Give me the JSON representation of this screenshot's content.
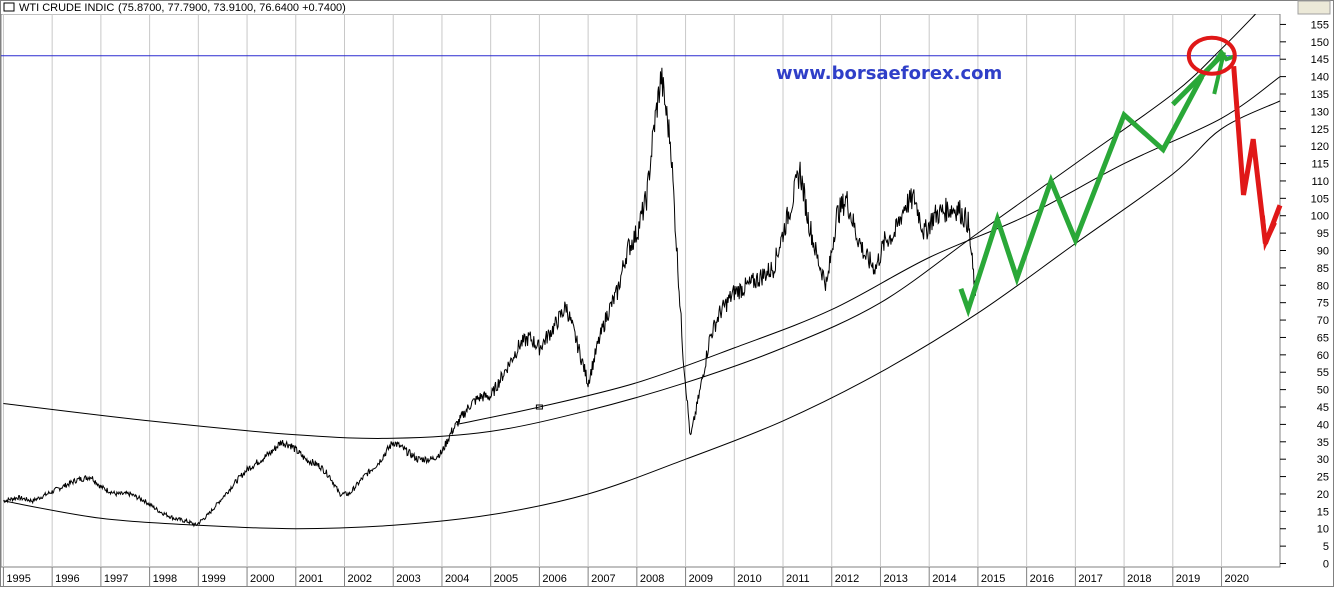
{
  "chart_data": {
    "type": "line",
    "title": "WTI CRUDE INDIC",
    "ohlc_readout": "(75.8700, 77.7900, 73.9100, 76.6400 +0.7400)",
    "watermark": "www.borsaeforex.com",
    "x_tick_labels": [
      "1995",
      "1996",
      "1997",
      "1998",
      "1999",
      "2000",
      "2001",
      "2002",
      "2003",
      "2004",
      "2005",
      "2006",
      "2007",
      "2008",
      "2009",
      "2010",
      "2011",
      "2012",
      "2013",
      "2014",
      "2015",
      "2016",
      "2017",
      "2018",
      "2019",
      "2020"
    ],
    "y_ticks": [
      0,
      5,
      10,
      15,
      20,
      25,
      30,
      35,
      40,
      45,
      50,
      55,
      60,
      65,
      70,
      75,
      80,
      85,
      90,
      95,
      100,
      105,
      110,
      115,
      120,
      125,
      130,
      135,
      140,
      145,
      150,
      155
    ],
    "xlim": [
      1994.95,
      2021.2
    ],
    "ylim": [
      -1,
      158
    ],
    "grid": true,
    "axis_side": "right",
    "colors": {
      "price": "#000000",
      "channel": "#000000",
      "resistance": "#2b2bd0",
      "watermark": "#2f3fc8",
      "forecast_up": "#2aa838",
      "forecast_down": "#e01818",
      "grid": "#c8c8c8",
      "frame_bg": "#ece9d8"
    },
    "series": [
      {
        "values_x": [
          1995.0,
          1995.3,
          1995.6,
          1995.9,
          1996.2,
          1996.5,
          1996.8,
          1997.0,
          1997.3,
          1997.6,
          1997.9,
          1998.2,
          1998.5,
          1998.8,
          1998.95,
          1999.2,
          1999.5,
          1999.8,
          2000.0,
          2000.3,
          2000.5,
          2000.7,
          2000.9,
          2001.2,
          2001.5,
          2001.7,
          2001.9,
          2002.1,
          2002.4,
          2002.7,
          2003.0,
          2003.2,
          2003.5,
          2003.8,
          2004.0,
          2004.2,
          2004.4,
          2004.6,
          2004.8,
          2005.0,
          2005.2,
          2005.4,
          2005.6,
          2005.8,
          2006.0,
          2006.3,
          2006.55,
          2006.8,
          2007.0,
          2007.2,
          2007.4,
          2007.6,
          2007.8,
          2008.0,
          2008.2,
          2008.35,
          2008.5,
          2008.7,
          2008.8,
          2008.95,
          2009.1,
          2009.3,
          2009.5,
          2009.7,
          2010.0,
          2010.3,
          2010.5,
          2010.8,
          2011.0,
          2011.2,
          2011.35,
          2011.5,
          2011.7,
          2011.9,
          2012.1,
          2012.3,
          2012.5,
          2012.7,
          2012.9,
          2013.1,
          2013.3,
          2013.5,
          2013.7,
          2013.9,
          2014.1,
          2014.4,
          2014.6,
          2014.8,
          2014.95
        ],
        "values_y": [
          18,
          19,
          18,
          20,
          22,
          24,
          25,
          22,
          20,
          20,
          18,
          15,
          13,
          12,
          11,
          14,
          19,
          24,
          27,
          30,
          32,
          35,
          34,
          30,
          28,
          25,
          20,
          20,
          25,
          29,
          35,
          33,
          30,
          30,
          32,
          38,
          42,
          46,
          48,
          48,
          53,
          58,
          63,
          65,
          62,
          68,
          74,
          62,
          52,
          63,
          72,
          78,
          90,
          95,
          105,
          125,
          140,
          120,
          95,
          60,
          36,
          50,
          65,
          72,
          78,
          80,
          82,
          85,
          95,
          105,
          113,
          100,
          88,
          80,
          100,
          105,
          95,
          88,
          85,
          93,
          95,
          103,
          105,
          95,
          100,
          102,
          102,
          98,
          77
        ],
        "name": "",
        "color": "#000000"
      }
    ],
    "channels": [
      {
        "name": "outer-upper-arc",
        "x": [
          1995.0,
          1998.0,
          2001.0,
          2003.0,
          2005.0,
          2007.0,
          2009.0,
          2011.0,
          2013.0,
          2015.0,
          2017.0,
          2019.0,
          2020.0,
          2020.7
        ],
        "y": [
          46,
          41,
          37,
          36,
          38,
          44,
          52,
          62,
          75,
          95,
          115,
          135,
          148,
          158
        ]
      },
      {
        "name": "middle-arc",
        "x": [
          2004.3,
          2006.0,
          2008.0,
          2010.0,
          2012.0,
          2014.0,
          2016.0,
          2018.0,
          2020.0,
          2021.2
        ],
        "y": [
          40,
          45,
          52,
          62,
          73,
          88,
          100,
          115,
          128,
          140
        ]
      },
      {
        "name": "lower-arc",
        "x": [
          1995.0,
          1997.0,
          1999.0,
          2001.0,
          2003.0,
          2005.0,
          2007.0,
          2009.0,
          2011.0,
          2013.0,
          2015.0,
          2017.0,
          2019.0,
          2020.0,
          2021.2
        ],
        "y": [
          18,
          13,
          11,
          10,
          11,
          14,
          20,
          30,
          41,
          55,
          72,
          92,
          112,
          125,
          133
        ]
      }
    ],
    "resistance_level": 146,
    "forecast": {
      "green": {
        "x": [
          2014.65,
          2014.8,
          2015.4,
          2015.8,
          2016.5,
          2017.0,
          2018.0,
          2018.8,
          2019.6
        ],
        "y": [
          79,
          73,
          99,
          82,
          110,
          93,
          129,
          119,
          140
        ]
      },
      "green_final_arrow": {
        "x": [
          2019.6,
          2019.9,
          2020.0,
          2020.1,
          2020.3
        ],
        "y": [
          140,
          145,
          147,
          145,
          146
        ]
      },
      "red": {
        "x": [
          2020.25,
          2020.45,
          2020.65,
          2020.9,
          2021.2
        ],
        "y": [
          143,
          106,
          122,
          92,
          103
        ]
      },
      "circle": {
        "x": 2019.8,
        "y": 146
      }
    }
  }
}
